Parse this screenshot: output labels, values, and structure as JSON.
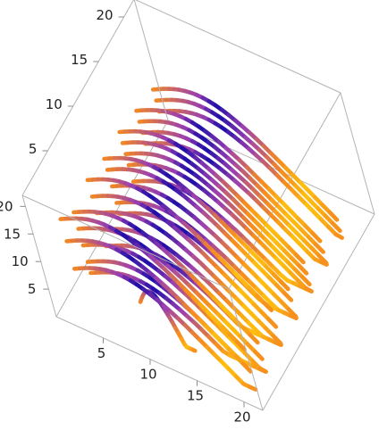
{
  "chart_data": {
    "type": "streamline-3d",
    "title": "",
    "xlabel": "",
    "ylabel": "",
    "zlabel": "",
    "axes": {
      "x": {
        "range": [
          0,
          22
        ],
        "ticks": [
          5,
          10,
          15,
          20
        ]
      },
      "y": {
        "range": [
          0,
          22
        ],
        "ticks": [
          5,
          10,
          15,
          20
        ]
      },
      "z": {
        "range": [
          0,
          22
        ],
        "ticks": [
          5,
          10,
          15,
          20
        ]
      }
    },
    "tick_labels": {
      "x": [
        "5",
        "10",
        "15",
        "20"
      ],
      "y": [
        "5",
        "10",
        "15",
        "20"
      ],
      "z": [
        "5",
        "10",
        "15",
        "20"
      ]
    },
    "box": true,
    "grid": false,
    "legend": "none",
    "colors": {
      "low": "#1a0ca8",
      "mid": "#9b3fb0",
      "high": "#f58a1f",
      "peak": "#ffc20e",
      "box": "#b3b3b3",
      "tick": "#222222"
    },
    "streamlines": [
      {
        "x0": 2,
        "x1": 20,
        "y": 19,
        "z": 12
      },
      {
        "x0": 2,
        "x1": 20,
        "y": 19,
        "z": 10
      },
      {
        "x0": 2,
        "x1": 20,
        "y": 19,
        "z": 8
      },
      {
        "x0": 2,
        "x1": 20,
        "y": 16,
        "z": 13
      },
      {
        "x0": 2,
        "x1": 20,
        "y": 16,
        "z": 11
      },
      {
        "x0": 2,
        "x1": 20,
        "y": 16,
        "z": 9
      },
      {
        "x0": 2,
        "x1": 20,
        "y": 16,
        "z": 7
      },
      {
        "x0": 2,
        "x1": 20,
        "y": 13,
        "z": 14
      },
      {
        "x0": 2,
        "x1": 20,
        "y": 13,
        "z": 12
      },
      {
        "x0": 2,
        "x1": 20,
        "y": 13,
        "z": 10
      },
      {
        "x0": 2,
        "x1": 20,
        "y": 13,
        "z": 8
      },
      {
        "x0": 2,
        "x1": 20,
        "y": 13,
        "z": 5
      },
      {
        "x0": 2,
        "x1": 20,
        "y": 10,
        "z": 14
      },
      {
        "x0": 2,
        "x1": 20,
        "y": 10,
        "z": 12
      },
      {
        "x0": 2,
        "x1": 20,
        "y": 10,
        "z": 9
      },
      {
        "x0": 2,
        "x1": 20,
        "y": 10,
        "z": 6
      },
      {
        "x0": 2,
        "x1": 20,
        "y": 10,
        "z": 4
      },
      {
        "x0": 2,
        "x1": 20,
        "y": 7,
        "z": 15
      },
      {
        "x0": 2,
        "x1": 20,
        "y": 7,
        "z": 12
      },
      {
        "x0": 2,
        "x1": 20,
        "y": 7,
        "z": 9
      },
      {
        "x0": 2,
        "x1": 20,
        "y": 7,
        "z": 6
      },
      {
        "x0": 2,
        "x1": 20,
        "y": 7,
        "z": 3
      },
      {
        "x0": 2,
        "x1": 20,
        "y": 4,
        "z": 14
      },
      {
        "x0": 2,
        "x1": 20,
        "y": 4,
        "z": 11
      },
      {
        "x0": 2,
        "x1": 20,
        "y": 4,
        "z": 8
      },
      {
        "x0": 2,
        "x1": 20,
        "y": 4,
        "z": 5
      },
      {
        "x0": 2,
        "x1": 20,
        "y": 4,
        "z": 3
      },
      {
        "x0": 2,
        "x1": 20,
        "y": 2,
        "z": 16
      },
      {
        "x0": 2,
        "x1": 20,
        "y": 2,
        "z": 12
      },
      {
        "x0": 2,
        "x1": 20,
        "y": 2,
        "z": 7
      },
      {
        "x0": 8,
        "x1": 13,
        "y": 3,
        "z": 4
      }
    ]
  }
}
